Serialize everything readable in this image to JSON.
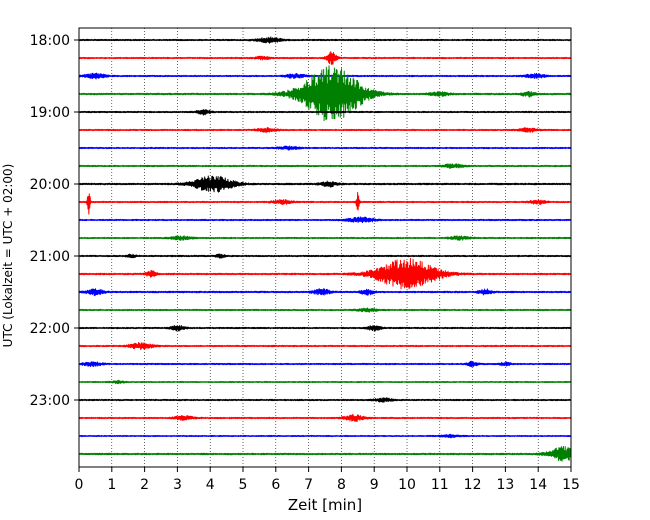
{
  "chart_data": {
    "type": "line",
    "title": "",
    "xlabel": "Zeit  [min]",
    "ylabel": "UTC (Lokalzeit = UTC + 02:00)",
    "xlim": [
      0,
      15
    ],
    "x_ticks": [
      "0",
      "1",
      "2",
      "3",
      "4",
      "5",
      "6",
      "7",
      "8",
      "9",
      "10",
      "11",
      "12",
      "13",
      "14",
      "15"
    ],
    "y_ticks": [
      "18:00",
      "19:00",
      "20:00",
      "21:00",
      "22:00",
      "23:00"
    ],
    "grid": "vertical dotted lines at each minute",
    "trace_colors": [
      "#000000",
      "#ff0000",
      "#0000ff",
      "#008000"
    ],
    "traces_per_hour": 4,
    "trace_minutes": 15,
    "rows": [
      {
        "label": "18:00",
        "color": "#000000",
        "noise": 0.7,
        "events": [
          {
            "t": 5.8,
            "amp": 2.5,
            "width": 0.35
          }
        ]
      },
      {
        "label": "18:15",
        "color": "#ff0000",
        "noise": 0.7,
        "events": [
          {
            "t": 5.6,
            "amp": 1.5,
            "width": 0.2
          },
          {
            "t": 7.7,
            "amp": 6,
            "width": 0.15
          }
        ]
      },
      {
        "label": "18:30",
        "color": "#0000ff",
        "noise": 0.7,
        "events": [
          {
            "t": 0.5,
            "amp": 2.5,
            "width": 0.3
          },
          {
            "t": 6.6,
            "amp": 2,
            "width": 0.3
          },
          {
            "t": 13.9,
            "amp": 2,
            "width": 0.3
          }
        ]
      },
      {
        "label": "18:45",
        "color": "#008000",
        "noise": 0.8,
        "events": [
          {
            "t": 7.7,
            "amp": 28,
            "width": 0.9
          },
          {
            "t": 11.0,
            "amp": 1.8,
            "width": 0.3
          },
          {
            "t": 13.7,
            "amp": 2.5,
            "width": 0.2
          }
        ]
      },
      {
        "label": "19:00",
        "color": "#000000",
        "noise": 0.7,
        "events": [
          {
            "t": 3.8,
            "amp": 2.5,
            "width": 0.2
          }
        ]
      },
      {
        "label": "19:15",
        "color": "#ff0000",
        "noise": 0.7,
        "events": [
          {
            "t": 5.7,
            "amp": 2,
            "width": 0.3
          },
          {
            "t": 13.7,
            "amp": 2,
            "width": 0.25
          }
        ]
      },
      {
        "label": "19:30",
        "color": "#0000ff",
        "noise": 0.7,
        "events": [
          {
            "t": 6.4,
            "amp": 1.5,
            "width": 0.3
          }
        ]
      },
      {
        "label": "19:45",
        "color": "#008000",
        "noise": 0.7,
        "events": [
          {
            "t": 11.4,
            "amp": 2,
            "width": 0.3
          }
        ]
      },
      {
        "label": "20:00",
        "color": "#000000",
        "noise": 0.8,
        "events": [
          {
            "t": 4.1,
            "amp": 8,
            "width": 0.6
          },
          {
            "t": 7.6,
            "amp": 2.5,
            "width": 0.25
          }
        ]
      },
      {
        "label": "20:15",
        "color": "#ff0000",
        "noise": 0.7,
        "events": [
          {
            "t": 0.3,
            "amp": 16,
            "width": 0.04
          },
          {
            "t": 6.2,
            "amp": 2,
            "width": 0.3
          },
          {
            "t": 8.5,
            "amp": 12,
            "width": 0.04
          },
          {
            "t": 14.0,
            "amp": 2,
            "width": 0.25
          }
        ]
      },
      {
        "label": "20:30",
        "color": "#0000ff",
        "noise": 0.7,
        "events": [
          {
            "t": 8.6,
            "amp": 2.5,
            "width": 0.4
          }
        ]
      },
      {
        "label": "20:45",
        "color": "#008000",
        "noise": 0.7,
        "events": [
          {
            "t": 3.1,
            "amp": 1.8,
            "width": 0.3
          },
          {
            "t": 11.6,
            "amp": 1.8,
            "width": 0.3
          }
        ]
      },
      {
        "label": "21:00",
        "color": "#000000",
        "noise": 0.7,
        "events": [
          {
            "t": 1.6,
            "amp": 1.5,
            "width": 0.15
          },
          {
            "t": 4.3,
            "amp": 1.5,
            "width": 0.15
          }
        ]
      },
      {
        "label": "21:15",
        "color": "#ff0000",
        "noise": 0.8,
        "events": [
          {
            "t": 2.2,
            "amp": 3,
            "width": 0.15
          },
          {
            "t": 10.0,
            "amp": 15,
            "width": 0.9
          }
        ]
      },
      {
        "label": "21:30",
        "color": "#0000ff",
        "noise": 0.8,
        "events": [
          {
            "t": 0.5,
            "amp": 3,
            "width": 0.25
          },
          {
            "t": 7.4,
            "amp": 3,
            "width": 0.25
          },
          {
            "t": 8.8,
            "amp": 2.5,
            "width": 0.2
          },
          {
            "t": 12.4,
            "amp": 2.5,
            "width": 0.2
          }
        ]
      },
      {
        "label": "21:45",
        "color": "#008000",
        "noise": 0.7,
        "events": [
          {
            "t": 8.8,
            "amp": 1.5,
            "width": 0.3
          }
        ]
      },
      {
        "label": "22:00",
        "color": "#000000",
        "noise": 0.7,
        "events": [
          {
            "t": 3.0,
            "amp": 2.5,
            "width": 0.2
          },
          {
            "t": 9.0,
            "amp": 2.5,
            "width": 0.2
          }
        ]
      },
      {
        "label": "22:15",
        "color": "#ff0000",
        "noise": 0.7,
        "events": [
          {
            "t": 1.9,
            "amp": 3,
            "width": 0.35
          }
        ]
      },
      {
        "label": "22:30",
        "color": "#0000ff",
        "noise": 0.7,
        "events": [
          {
            "t": 0.4,
            "amp": 2,
            "width": 0.3
          },
          {
            "t": 12.0,
            "amp": 2.5,
            "width": 0.15
          },
          {
            "t": 13.0,
            "amp": 1.8,
            "width": 0.15
          }
        ]
      },
      {
        "label": "22:45",
        "color": "#008000",
        "noise": 0.6,
        "events": [
          {
            "t": 1.2,
            "amp": 1.2,
            "width": 0.2
          }
        ]
      },
      {
        "label": "23:00",
        "color": "#000000",
        "noise": 0.7,
        "events": [
          {
            "t": 9.3,
            "amp": 2,
            "width": 0.25
          }
        ]
      },
      {
        "label": "23:15",
        "color": "#ff0000",
        "noise": 0.7,
        "events": [
          {
            "t": 3.2,
            "amp": 2,
            "width": 0.3
          },
          {
            "t": 8.4,
            "amp": 3,
            "width": 0.3
          }
        ]
      },
      {
        "label": "23:30",
        "color": "#0000ff",
        "noise": 0.6,
        "events": [
          {
            "t": 11.3,
            "amp": 1.2,
            "width": 0.3
          }
        ]
      },
      {
        "label": "23:45",
        "color": "#008000",
        "noise": 0.8,
        "events": [
          {
            "t": 14.8,
            "amp": 7,
            "width": 0.45
          }
        ]
      }
    ]
  }
}
